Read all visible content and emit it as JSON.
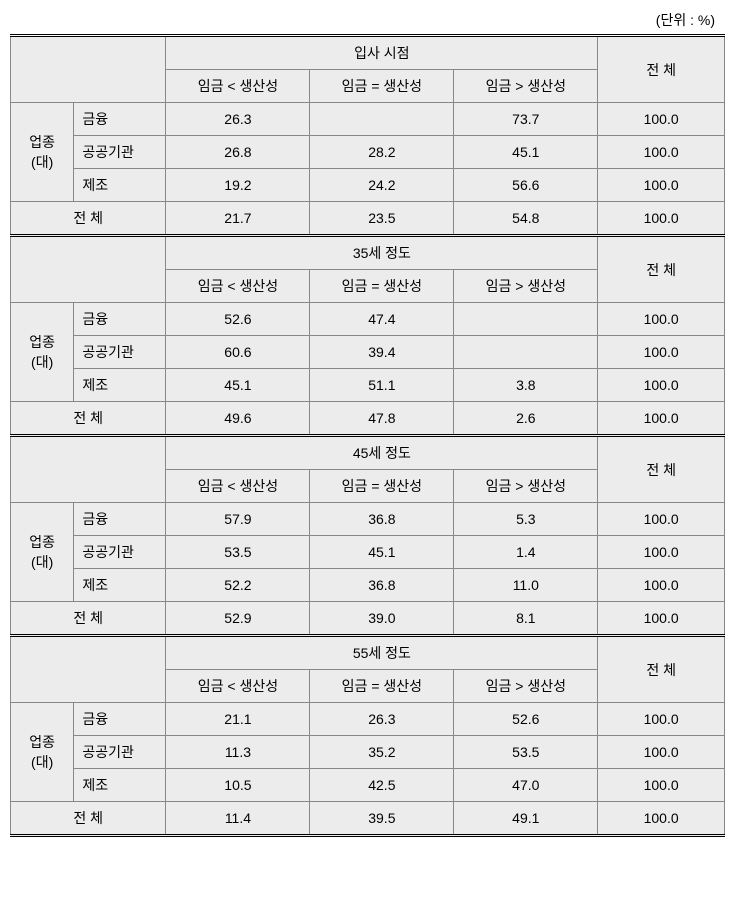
{
  "unit_label": "(단위 : %)",
  "row_group_label_lines": [
    "업종",
    "(대)"
  ],
  "row_categories": [
    "금융",
    "공공기관",
    "제조"
  ],
  "total_row_label": "전 체",
  "total_col_header": "전 체",
  "col_lt": "임금 < 생산성",
  "col_eq": "임금 = 생산성",
  "col_gt": "임금 > 생산성",
  "sections": [
    {
      "header": "입사 시점",
      "rows": [
        [
          "26.3",
          "",
          "73.7",
          "100.0"
        ],
        [
          "26.8",
          "28.2",
          "45.1",
          "100.0"
        ],
        [
          "19.2",
          "24.2",
          "56.6",
          "100.0"
        ]
      ],
      "total": [
        "21.7",
        "23.5",
        "54.8",
        "100.0"
      ]
    },
    {
      "header": "35세 정도",
      "rows": [
        [
          "52.6",
          "47.4",
          "",
          "100.0"
        ],
        [
          "60.6",
          "39.4",
          "",
          "100.0"
        ],
        [
          "45.1",
          "51.1",
          "3.8",
          "100.0"
        ]
      ],
      "total": [
        "49.6",
        "47.8",
        "2.6",
        "100.0"
      ]
    },
    {
      "header": "45세 정도",
      "rows": [
        [
          "57.9",
          "36.8",
          "5.3",
          "100.0"
        ],
        [
          "53.5",
          "45.1",
          "1.4",
          "100.0"
        ],
        [
          "52.2",
          "36.8",
          "11.0",
          "100.0"
        ]
      ],
      "total": [
        "52.9",
        "39.0",
        "8.1",
        "100.0"
      ]
    },
    {
      "header": "55세 정도",
      "rows": [
        [
          "21.1",
          "26.3",
          "52.6",
          "100.0"
        ],
        [
          "11.3",
          "35.2",
          "53.5",
          "100.0"
        ],
        [
          "10.5",
          "42.5",
          "47.0",
          "100.0"
        ]
      ],
      "total": [
        "11.4",
        "39.5",
        "49.1",
        "100.0"
      ]
    }
  ]
}
